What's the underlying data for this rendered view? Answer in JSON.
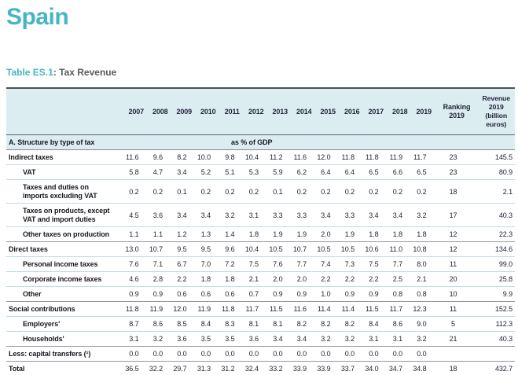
{
  "page_title": "Spain",
  "colors": {
    "accent_teal": "#47b5c4",
    "header_bg": "#dcedf2",
    "text_dark": "#23233a",
    "caption_gray": "#58595b"
  },
  "table": {
    "caption_label": "Table ES.1",
    "caption_text": ": Tax Revenue",
    "col_headers": [
      "2007",
      "2008",
      "2009",
      "2010",
      "2011",
      "2012",
      "2013",
      "2014",
      "2015",
      "2016",
      "2017",
      "2018",
      "2019"
    ],
    "ranking_header": "Ranking\n2019",
    "revenue_header": "Revenue\n2019\n(billion\neuros)",
    "section_row": {
      "label": "A. Structure by type of tax",
      "unit_label": "as % of GDP"
    },
    "rows": [
      {
        "label": "Indirect taxes",
        "level": 0,
        "major": true,
        "values": [
          "11.6",
          "9.6",
          "8.2",
          "10.0",
          "9.8",
          "10.4",
          "11.2",
          "11.6",
          "12.0",
          "11.8",
          "11.8",
          "11.9",
          "11.7"
        ],
        "ranking": "23",
        "revenue": "145.5"
      },
      {
        "label": "VAT",
        "level": 1,
        "major": false,
        "values": [
          "5.8",
          "4.7",
          "3.4",
          "5.2",
          "5.1",
          "5.3",
          "5.9",
          "6.2",
          "6.4",
          "6.4",
          "6.5",
          "6.6",
          "6.5"
        ],
        "ranking": "23",
        "revenue": "80.9"
      },
      {
        "label": "Taxes and duties on\nimports excluding VAT",
        "level": 1,
        "major": false,
        "values": [
          "0.2",
          "0.2",
          "0.1",
          "0.2",
          "0.2",
          "0.2",
          "0.1",
          "0.2",
          "0.2",
          "0.2",
          "0.2",
          "0.2",
          "0.2"
        ],
        "ranking": "18",
        "revenue": "2.1"
      },
      {
        "label": "Taxes on products, except\nVAT and import duties",
        "level": 1,
        "major": false,
        "values": [
          "4.5",
          "3.6",
          "3.4",
          "3.4",
          "3.2",
          "3.1",
          "3.3",
          "3.3",
          "3.4",
          "3.3",
          "3.4",
          "3.4",
          "3.2"
        ],
        "ranking": "17",
        "revenue": "40.3"
      },
      {
        "label": "Other taxes on production",
        "level": 1,
        "major": false,
        "values": [
          "1.1",
          "1.1",
          "1.2",
          "1.3",
          "1.4",
          "1.8",
          "1.9",
          "1.9",
          "2.0",
          "1.9",
          "1.8",
          "1.8",
          "1.8"
        ],
        "ranking": "12",
        "revenue": "22.3"
      },
      {
        "label": "Direct taxes",
        "level": 0,
        "major": true,
        "values": [
          "13.0",
          "10.7",
          "9.5",
          "9.5",
          "9.6",
          "10.4",
          "10.5",
          "10.7",
          "10.5",
          "10.5",
          "10.6",
          "11.0",
          "10.8"
        ],
        "ranking": "12",
        "revenue": "134.6"
      },
      {
        "label": "Personal income taxes",
        "level": 1,
        "major": false,
        "values": [
          "7.6",
          "7.1",
          "6.7",
          "7.0",
          "7.2",
          "7.5",
          "7.6",
          "7.7",
          "7.4",
          "7.3",
          "7.5",
          "7.7",
          "8.0"
        ],
        "ranking": "11",
        "revenue": "99.0"
      },
      {
        "label": "Corporate income taxes",
        "level": 1,
        "major": false,
        "values": [
          "4.6",
          "2.8",
          "2.2",
          "1.8",
          "1.8",
          "2.1",
          "2.0",
          "2.0",
          "2.2",
          "2.2",
          "2.2",
          "2.5",
          "2.1"
        ],
        "ranking": "20",
        "revenue": "25.8"
      },
      {
        "label": "Other",
        "level": 1,
        "major": false,
        "values": [
          "0.9",
          "0.9",
          "0.6",
          "0.6",
          "0.6",
          "0.7",
          "0.9",
          "0.9",
          "1.0",
          "0.9",
          "0.9",
          "0.8",
          "0.8"
        ],
        "ranking": "10",
        "revenue": "9.9"
      },
      {
        "label": "Social contributions",
        "level": 0,
        "major": true,
        "values": [
          "11.8",
          "11.9",
          "12.0",
          "11.9",
          "11.8",
          "11.7",
          "11.5",
          "11.6",
          "11.4",
          "11.4",
          "11.5",
          "11.7",
          "12.3"
        ],
        "ranking": "11",
        "revenue": "152.5"
      },
      {
        "label": "Employers'",
        "level": 1,
        "major": false,
        "values": [
          "8.7",
          "8.6",
          "8.5",
          "8.4",
          "8.3",
          "8.1",
          "8.1",
          "8.2",
          "8.2",
          "8.2",
          "8.4",
          "8.6",
          "9.0"
        ],
        "ranking": "5",
        "revenue": "112.3"
      },
      {
        "label": "Households'",
        "level": 1,
        "major": false,
        "values": [
          "3.1",
          "3.2",
          "3.6",
          "3.5",
          "3.5",
          "3.6",
          "3.4",
          "3.4",
          "3.2",
          "3.2",
          "3.1",
          "3.1",
          "3.2"
        ],
        "ranking": "21",
        "revenue": "40.3"
      },
      {
        "label": "Less: capital transfers (¹)",
        "level": 0,
        "major": true,
        "values": [
          "0.0",
          "0.0",
          "0.0",
          "0.0",
          "0.0",
          "0.0",
          "0.0",
          "0.0",
          "0.0",
          "0.0",
          "0.0",
          "0.0",
          "0.0"
        ],
        "ranking": "",
        "revenue": ""
      },
      {
        "label": "Total",
        "level": 0,
        "major": true,
        "values": [
          "36.5",
          "32.2",
          "29.7",
          "31.3",
          "31.2",
          "32.4",
          "33.2",
          "33.9",
          "33.9",
          "33.7",
          "34.0",
          "34.7",
          "34.8"
        ],
        "ranking": "18",
        "revenue": "432.7"
      }
    ]
  }
}
